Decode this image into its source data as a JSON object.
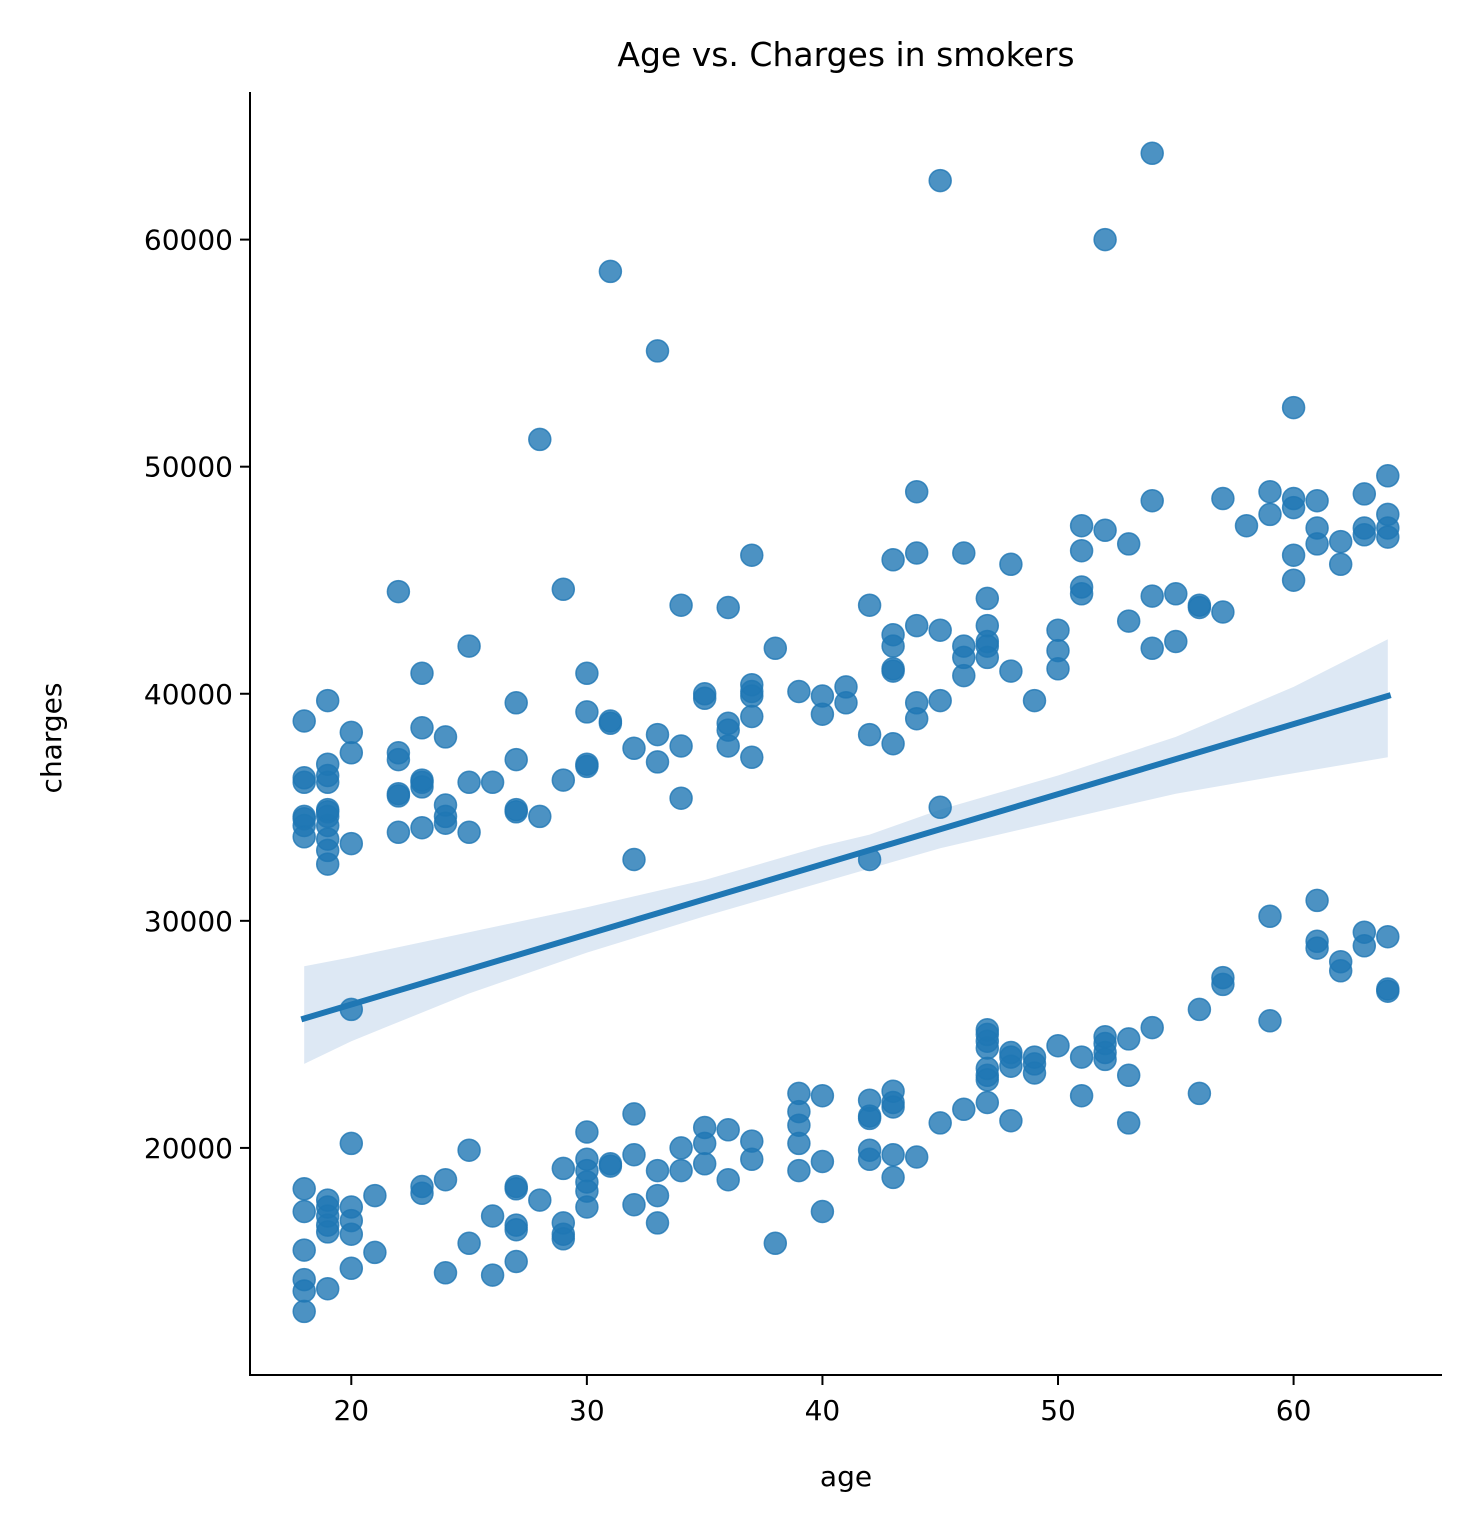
{
  "chart_data": {
    "type": "scatter",
    "title": "Age vs. Charges in smokers",
    "xlabel": "age",
    "ylabel": "charges",
    "xlim": [
      15.7,
      66.3
    ],
    "ylim": [
      10000,
      66500
    ],
    "xticks": [
      20,
      30,
      40,
      50,
      60
    ],
    "yticks": [
      20000,
      30000,
      40000,
      50000,
      60000
    ],
    "xtick_labels": [
      "20",
      "30",
      "40",
      "50",
      "60"
    ],
    "ytick_labels": [
      "20000",
      "30000",
      "40000",
      "50000",
      "60000"
    ],
    "grid": false,
    "legend": "none",
    "marker_color": "#1f77b4",
    "regression_color": "#1f77b4",
    "band_color": "#c6d9ec",
    "points": [
      [
        18,
        12800
      ],
      [
        18,
        13700
      ],
      [
        18,
        14200
      ],
      [
        18,
        15500
      ],
      [
        18,
        17200
      ],
      [
        18,
        18200
      ],
      [
        19,
        13800
      ],
      [
        19,
        16300
      ],
      [
        19,
        16600
      ],
      [
        19,
        17000
      ],
      [
        19,
        17400
      ],
      [
        19,
        17700
      ],
      [
        20,
        14700
      ],
      [
        20,
        16200
      ],
      [
        20,
        16800
      ],
      [
        20,
        17400
      ],
      [
        20,
        20200
      ],
      [
        21,
        15400
      ],
      [
        21,
        17900
      ],
      [
        23,
        18000
      ],
      [
        23,
        18300
      ],
      [
        24,
        14500
      ],
      [
        24,
        18600
      ],
      [
        25,
        15800
      ],
      [
        25,
        19900
      ],
      [
        26,
        14400
      ],
      [
        26,
        17000
      ],
      [
        27,
        15000
      ],
      [
        27,
        16400
      ],
      [
        27,
        16600
      ],
      [
        27,
        18200
      ],
      [
        27,
        18300
      ],
      [
        28,
        17700
      ],
      [
        29,
        16000
      ],
      [
        29,
        16200
      ],
      [
        29,
        16700
      ],
      [
        29,
        19100
      ],
      [
        30,
        17400
      ],
      [
        30,
        18100
      ],
      [
        30,
        18500
      ],
      [
        30,
        19000
      ],
      [
        30,
        19500
      ],
      [
        30,
        20700
      ],
      [
        31,
        19200
      ],
      [
        31,
        19300
      ],
      [
        32,
        17500
      ],
      [
        32,
        19700
      ],
      [
        32,
        21500
      ],
      [
        33,
        16700
      ],
      [
        33,
        17900
      ],
      [
        33,
        19000
      ],
      [
        34,
        19000
      ],
      [
        34,
        20000
      ],
      [
        35,
        19300
      ],
      [
        35,
        20200
      ],
      [
        35,
        20900
      ],
      [
        36,
        18600
      ],
      [
        36,
        20800
      ],
      [
        37,
        19500
      ],
      [
        37,
        20300
      ],
      [
        38,
        15800
      ],
      [
        39,
        19000
      ],
      [
        39,
        20200
      ],
      [
        39,
        21000
      ],
      [
        39,
        21600
      ],
      [
        39,
        22400
      ],
      [
        40,
        17200
      ],
      [
        40,
        19400
      ],
      [
        40,
        22300
      ],
      [
        42,
        19500
      ],
      [
        42,
        19900
      ],
      [
        42,
        21300
      ],
      [
        42,
        21400
      ],
      [
        42,
        22100
      ],
      [
        43,
        18700
      ],
      [
        43,
        19700
      ],
      [
        43,
        21800
      ],
      [
        43,
        22000
      ],
      [
        43,
        22500
      ],
      [
        44,
        19600
      ],
      [
        45,
        21100
      ],
      [
        46,
        21700
      ],
      [
        47,
        22000
      ],
      [
        47,
        23000
      ],
      [
        47,
        23200
      ],
      [
        47,
        23500
      ],
      [
        47,
        24400
      ],
      [
        47,
        24700
      ],
      [
        47,
        25000
      ],
      [
        47,
        25200
      ],
      [
        48,
        21200
      ],
      [
        48,
        23600
      ],
      [
        48,
        24000
      ],
      [
        48,
        24200
      ],
      [
        49,
        23300
      ],
      [
        49,
        23700
      ],
      [
        49,
        24000
      ],
      [
        50,
        24500
      ],
      [
        51,
        22300
      ],
      [
        51,
        24000
      ],
      [
        52,
        23900
      ],
      [
        52,
        24200
      ],
      [
        52,
        24600
      ],
      [
        52,
        24900
      ],
      [
        53,
        21100
      ],
      [
        53,
        23200
      ],
      [
        53,
        24800
      ],
      [
        54,
        25300
      ],
      [
        56,
        22400
      ],
      [
        56,
        26100
      ],
      [
        57,
        27200
      ],
      [
        57,
        27500
      ],
      [
        59,
        25600
      ],
      [
        59,
        30200
      ],
      [
        61,
        28800
      ],
      [
        61,
        29100
      ],
      [
        61,
        30900
      ],
      [
        62,
        27800
      ],
      [
        62,
        28200
      ],
      [
        63,
        28900
      ],
      [
        63,
        29500
      ],
      [
        64,
        26900
      ],
      [
        64,
        27000
      ],
      [
        64,
        29300
      ],
      [
        18,
        33700
      ],
      [
        18,
        34200
      ],
      [
        18,
        34500
      ],
      [
        18,
        34600
      ],
      [
        18,
        36100
      ],
      [
        18,
        36300
      ],
      [
        18,
        38800
      ],
      [
        19,
        32500
      ],
      [
        19,
        33100
      ],
      [
        19,
        33600
      ],
      [
        19,
        34200
      ],
      [
        19,
        34600
      ],
      [
        19,
        34800
      ],
      [
        19,
        34900
      ],
      [
        19,
        36100
      ],
      [
        19,
        36400
      ],
      [
        19,
        36900
      ],
      [
        19,
        39700
      ],
      [
        20,
        26100
      ],
      [
        20,
        33400
      ],
      [
        20,
        37400
      ],
      [
        20,
        38300
      ],
      [
        22,
        33900
      ],
      [
        22,
        35500
      ],
      [
        22,
        35600
      ],
      [
        22,
        37100
      ],
      [
        22,
        37400
      ],
      [
        22,
        44500
      ],
      [
        23,
        34100
      ],
      [
        23,
        35900
      ],
      [
        23,
        36100
      ],
      [
        23,
        36200
      ],
      [
        23,
        38500
      ],
      [
        23,
        40900
      ],
      [
        24,
        34300
      ],
      [
        24,
        34600
      ],
      [
        24,
        35100
      ],
      [
        24,
        38100
      ],
      [
        25,
        33900
      ],
      [
        25,
        36100
      ],
      [
        25,
        42100
      ],
      [
        26,
        36100
      ],
      [
        27,
        34800
      ],
      [
        27,
        34900
      ],
      [
        27,
        37100
      ],
      [
        27,
        39600
      ],
      [
        28,
        34600
      ],
      [
        28,
        51200
      ],
      [
        29,
        36200
      ],
      [
        29,
        44600
      ],
      [
        30,
        36800
      ],
      [
        30,
        36900
      ],
      [
        30,
        39200
      ],
      [
        30,
        40900
      ],
      [
        31,
        38700
      ],
      [
        31,
        38800
      ],
      [
        31,
        58600
      ],
      [
        32,
        32700
      ],
      [
        32,
        37600
      ],
      [
        33,
        37000
      ],
      [
        33,
        38200
      ],
      [
        33,
        55100
      ],
      [
        34,
        35400
      ],
      [
        34,
        37700
      ],
      [
        34,
        43900
      ],
      [
        35,
        39800
      ],
      [
        35,
        40000
      ],
      [
        36,
        37700
      ],
      [
        36,
        38400
      ],
      [
        36,
        38700
      ],
      [
        36,
        43800
      ],
      [
        37,
        37200
      ],
      [
        37,
        39000
      ],
      [
        37,
        39900
      ],
      [
        37,
        40100
      ],
      [
        37,
        40400
      ],
      [
        37,
        46100
      ],
      [
        38,
        42000
      ],
      [
        39,
        40100
      ],
      [
        40,
        39100
      ],
      [
        40,
        39900
      ],
      [
        41,
        39600
      ],
      [
        41,
        40300
      ],
      [
        42,
        32700
      ],
      [
        42,
        38200
      ],
      [
        42,
        43900
      ],
      [
        43,
        37800
      ],
      [
        43,
        41000
      ],
      [
        43,
        41100
      ],
      [
        43,
        42100
      ],
      [
        43,
        42600
      ],
      [
        43,
        45900
      ],
      [
        44,
        38900
      ],
      [
        44,
        39600
      ],
      [
        44,
        43000
      ],
      [
        44,
        46200
      ],
      [
        44,
        48900
      ],
      [
        45,
        35000
      ],
      [
        45,
        39700
      ],
      [
        45,
        42800
      ],
      [
        45,
        62600
      ],
      [
        46,
        40800
      ],
      [
        46,
        41600
      ],
      [
        46,
        42100
      ],
      [
        46,
        46200
      ],
      [
        47,
        41600
      ],
      [
        47,
        42100
      ],
      [
        47,
        42300
      ],
      [
        47,
        43000
      ],
      [
        47,
        44200
      ],
      [
        48,
        41000
      ],
      [
        48,
        45700
      ],
      [
        49,
        39700
      ],
      [
        50,
        41100
      ],
      [
        50,
        41900
      ],
      [
        50,
        42800
      ],
      [
        51,
        44400
      ],
      [
        51,
        44700
      ],
      [
        51,
        46300
      ],
      [
        51,
        47400
      ],
      [
        52,
        47200
      ],
      [
        52,
        60000
      ],
      [
        53,
        43200
      ],
      [
        53,
        46600
      ],
      [
        54,
        42000
      ],
      [
        54,
        44300
      ],
      [
        54,
        48500
      ],
      [
        54,
        63800
      ],
      [
        55,
        42300
      ],
      [
        55,
        44400
      ],
      [
        56,
        43800
      ],
      [
        56,
        43900
      ],
      [
        57,
        43600
      ],
      [
        57,
        48600
      ],
      [
        58,
        47400
      ],
      [
        59,
        47900
      ],
      [
        59,
        48900
      ],
      [
        60,
        45000
      ],
      [
        60,
        46100
      ],
      [
        60,
        48200
      ],
      [
        60,
        48600
      ],
      [
        60,
        52600
      ],
      [
        61,
        46600
      ],
      [
        61,
        47300
      ],
      [
        61,
        48500
      ],
      [
        62,
        45700
      ],
      [
        62,
        46700
      ],
      [
        63,
        47000
      ],
      [
        63,
        47300
      ],
      [
        63,
        48800
      ],
      [
        64,
        46900
      ],
      [
        64,
        47300
      ],
      [
        64,
        47900
      ],
      [
        64,
        49600
      ]
    ],
    "regression": {
      "x": [
        18,
        64
      ],
      "y": [
        25700,
        39900
      ]
    },
    "confidence_band": {
      "x": [
        18,
        20,
        25,
        30,
        35,
        40,
        42,
        45,
        50,
        55,
        60,
        64
      ],
      "lower": [
        23700,
        24700,
        26800,
        28600,
        30200,
        31700,
        32300,
        33200,
        34400,
        35600,
        36500,
        37200
      ],
      "upper": [
        28000,
        28400,
        29500,
        30600,
        31800,
        33300,
        33800,
        34900,
        36400,
        38100,
        40300,
        42400
      ]
    }
  }
}
